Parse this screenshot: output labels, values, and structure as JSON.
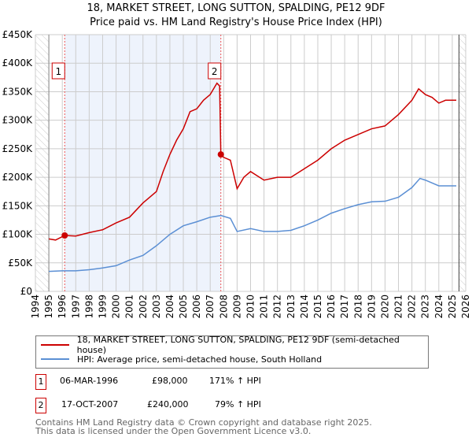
{
  "chart_data": {
    "type": "line",
    "title": "18, MARKET STREET, LONG SUTTON, SPALDING, PE12 9DF",
    "subtitle": "Price paid vs. HM Land Registry's House Price Index (HPI)",
    "xlim": [
      1994,
      2026
    ],
    "ylim": [
      0,
      450000
    ],
    "x_ticks": [
      "1994",
      "1995",
      "1996",
      "1997",
      "1998",
      "1999",
      "2000",
      "2001",
      "2002",
      "2003",
      "2004",
      "2005",
      "2006",
      "2007",
      "2008",
      "2009",
      "2010",
      "2011",
      "2012",
      "2013",
      "2014",
      "2015",
      "2016",
      "2017",
      "2018",
      "2019",
      "2020",
      "2021",
      "2022",
      "2023",
      "2024",
      "2025",
      "2026"
    ],
    "y_ticks": [
      {
        "v": 0,
        "label": "£0"
      },
      {
        "v": 50000,
        "label": "£50K"
      },
      {
        "v": 100000,
        "label": "£100K"
      },
      {
        "v": 150000,
        "label": "£150K"
      },
      {
        "v": 200000,
        "label": "£200K"
      },
      {
        "v": 250000,
        "label": "£250K"
      },
      {
        "v": 300000,
        "label": "£300K"
      },
      {
        "v": 350000,
        "label": "£350K"
      },
      {
        "v": 400000,
        "label": "£400K"
      },
      {
        "v": 450000,
        "label": "£450K"
      }
    ],
    "grid": true,
    "series": [
      {
        "name": "18, MARKET STREET, LONG SUTTON, SPALDING, PE12 9DF (semi-detached house)",
        "color": "#cc0000",
        "x": [
          1995,
          1995.5,
          1996.18,
          1997,
          1998,
          1999,
          2000,
          2001,
          2002,
          2003,
          2003.5,
          2004,
          2004.5,
          2005,
          2005.5,
          2006,
          2006.5,
          2007,
          2007.5,
          2007.7,
          2007.79,
          2008,
          2008.5,
          2009,
          2009.5,
          2010,
          2011,
          2012,
          2013,
          2014,
          2015,
          2016,
          2017,
          2018,
          2019,
          2020,
          2021,
          2022,
          2022.5,
          2023,
          2023.5,
          2024,
          2024.5,
          2025.3
        ],
        "y": [
          92000,
          90000,
          98000,
          97000,
          103000,
          108000,
          120000,
          130000,
          155000,
          175000,
          210000,
          240000,
          265000,
          285000,
          315000,
          320000,
          335000,
          345000,
          365000,
          360000,
          240000,
          235000,
          230000,
          180000,
          200000,
          210000,
          195000,
          200000,
          200000,
          215000,
          230000,
          250000,
          265000,
          275000,
          285000,
          290000,
          310000,
          335000,
          355000,
          345000,
          340000,
          330000,
          335000,
          335000
        ]
      },
      {
        "name": "HPI: Average price, semi-detached house, South Holland",
        "color": "#5b8fd4",
        "x": [
          1995,
          1996,
          1997,
          1998,
          1999,
          2000,
          2001,
          2002,
          2003,
          2004,
          2005,
          2006,
          2007,
          2007.8,
          2008.5,
          2009,
          2010,
          2011,
          2012,
          2013,
          2014,
          2015,
          2016,
          2017,
          2018,
          2019,
          2020,
          2021,
          2022,
          2022.6,
          2023,
          2024,
          2025.3
        ],
        "y": [
          35000,
          36000,
          36000,
          38000,
          41000,
          45000,
          55000,
          63000,
          80000,
          100000,
          115000,
          122000,
          130000,
          133000,
          128000,
          105000,
          110000,
          105000,
          105000,
          107000,
          115000,
          125000,
          137000,
          145000,
          152000,
          157000,
          158000,
          165000,
          182000,
          198000,
          195000,
          185000,
          185000
        ]
      }
    ],
    "sales": [
      {
        "id": "1",
        "x": 1996.18,
        "price": 98000,
        "date": "06-MAR-1996",
        "price_label": "£98,000",
        "hpi": "171% ↑ HPI"
      },
      {
        "id": "2",
        "x": 2007.79,
        "price": 240000,
        "date": "17-OCT-2007",
        "price_label": "£240,000",
        "hpi": "79% ↑ HPI"
      }
    ],
    "shaded_range": [
      1996.18,
      2007.79
    ],
    "hatched_before": 1995,
    "hatched_after": 2025.5
  },
  "footer": {
    "line1": "Contains HM Land Registry data © Crown copyright and database right 2025.",
    "line2": "This data is licensed under the Open Government Licence v3.0."
  }
}
